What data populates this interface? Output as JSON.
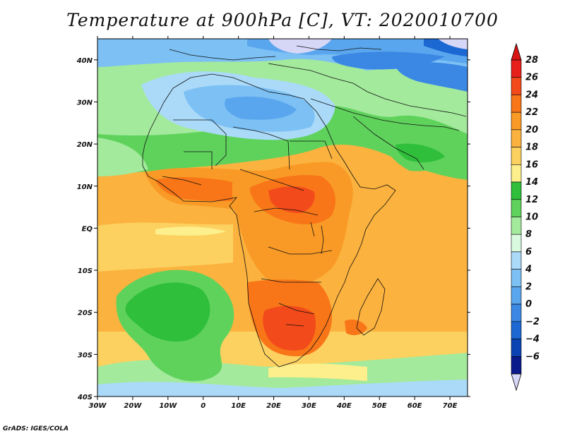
{
  "title": "Temperature at 900hPa [C], VT: 2020010700",
  "credit": "GrADS: IGES/COLA",
  "map": {
    "lon_range": [
      -30,
      75
    ],
    "lat_range": [
      -40,
      45
    ],
    "lon_ticks": [
      "30W",
      "20W",
      "10W",
      "0",
      "10E",
      "20E",
      "30E",
      "40E",
      "50E",
      "60E",
      "70E"
    ],
    "lat_ticks": [
      "40N",
      "30N",
      "20N",
      "10N",
      "EQ",
      "10S",
      "20S",
      "30S",
      "40S"
    ]
  },
  "colorbar": {
    "labels": [
      "28",
      "26",
      "24",
      "22",
      "20",
      "18",
      "16",
      "14",
      "12",
      "10",
      "8",
      "6",
      "4",
      "2",
      "0",
      "−2",
      "−4",
      "−6"
    ],
    "colors": [
      "#e8201c",
      "#f24a1a",
      "#f87518",
      "#f99a26",
      "#fbb23e",
      "#fcd160",
      "#fcef8c",
      "#2fbf3b",
      "#5fd25c",
      "#a3ea9c",
      "#dafae0",
      "#aadaf8",
      "#7cc0f4",
      "#5aa6ee",
      "#3a88e4",
      "#1c68d2",
      "#0a44b4",
      "#0a1a8a"
    ],
    "top_arrow_color": "#d81414",
    "bottom_arrow_color": "#d6d6f6"
  }
}
